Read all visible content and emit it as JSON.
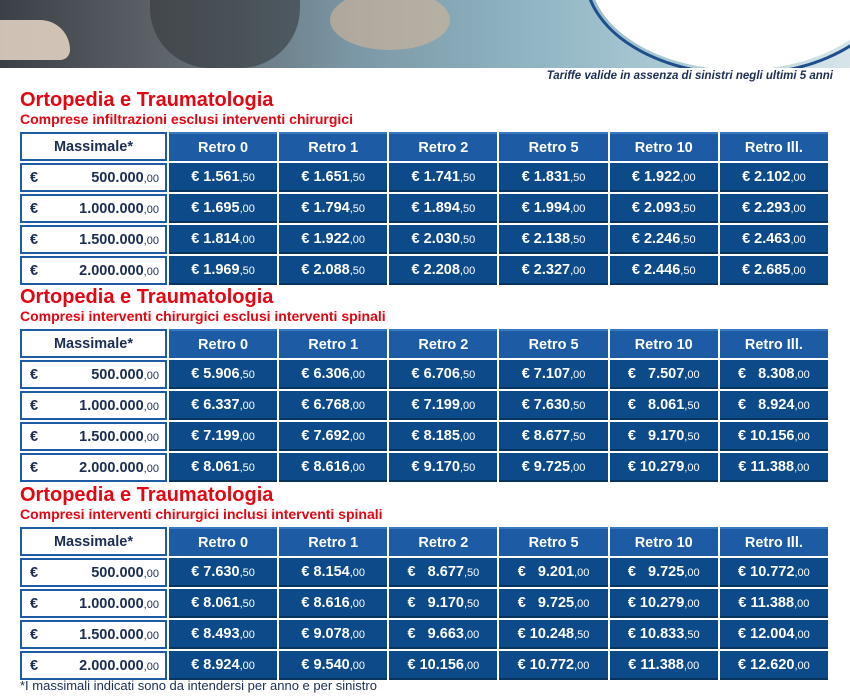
{
  "note": "Tariffe valide in assenza di sinistri negli ultimi 5 anni",
  "headers": {
    "massimale": "Massimale*",
    "columns": [
      "Retro 0",
      "Retro 1",
      "Retro 2",
      "Retro 5",
      "Retro 10",
      "Retro Ill."
    ]
  },
  "currency": "€",
  "sections": [
    {
      "title": "Ortopedia e Traumatologia",
      "subtitle": "Comprese infiltrazioni esclusi interventi chirurgici",
      "rows": [
        {
          "amount": "500.000",
          "amount_dec": ",00",
          "values": [
            [
              "€ 1.561",
              ",50"
            ],
            [
              "€ 1.651",
              ",50"
            ],
            [
              "€ 1.741",
              ",50"
            ],
            [
              "€ 1.831",
              ",50"
            ],
            [
              "€ 1.922",
              ",00"
            ],
            [
              "€ 2.102",
              ",00"
            ]
          ]
        },
        {
          "amount": "1.000.000",
          "amount_dec": ",00",
          "values": [
            [
              "€ 1.695",
              ",00"
            ],
            [
              "€ 1.794",
              ",50"
            ],
            [
              "€ 1.894",
              ",50"
            ],
            [
              "€ 1.994",
              ",00"
            ],
            [
              "€ 2.093",
              ",50"
            ],
            [
              "€ 2.293",
              ",00"
            ]
          ]
        },
        {
          "amount": "1.500.000",
          "amount_dec": ",00",
          "values": [
            [
              "€ 1.814",
              ",00"
            ],
            [
              "€ 1.922",
              ",00"
            ],
            [
              "€ 2.030",
              ",50"
            ],
            [
              "€ 2.138",
              ",50"
            ],
            [
              "€ 2.246",
              ",50"
            ],
            [
              "€ 2.463",
              ",00"
            ]
          ]
        },
        {
          "amount": "2.000.000",
          "amount_dec": ",00",
          "values": [
            [
              "€ 1.969",
              ",50"
            ],
            [
              "€ 2.088",
              ",50"
            ],
            [
              "€ 2.208",
              ",00"
            ],
            [
              "€ 2.327",
              ",00"
            ],
            [
              "€ 2.446",
              ",50"
            ],
            [
              "€ 2.685",
              ",00"
            ]
          ]
        }
      ]
    },
    {
      "title": "Ortopedia e Traumatologia",
      "subtitle": "Compresi interventi chirurgici esclusi interventi spinali",
      "rows": [
        {
          "amount": "500.000",
          "amount_dec": ",00",
          "values": [
            [
              "€ 5.906",
              ",50"
            ],
            [
              "€ 6.306",
              ",00"
            ],
            [
              "€ 6.706",
              ",50"
            ],
            [
              "€ 7.107",
              ",00"
            ],
            [
              "€   7.507",
              ",00"
            ],
            [
              "€   8.308",
              ",00"
            ]
          ]
        },
        {
          "amount": "1.000.000",
          "amount_dec": ",00",
          "values": [
            [
              "€ 6.337",
              ",00"
            ],
            [
              "€ 6.768",
              ",00"
            ],
            [
              "€ 7.199",
              ",00"
            ],
            [
              "€ 7.630",
              ",50"
            ],
            [
              "€   8.061",
              ",50"
            ],
            [
              "€   8.924",
              ",00"
            ]
          ]
        },
        {
          "amount": "1.500.000",
          "amount_dec": ",00",
          "values": [
            [
              "€ 7.199",
              ",00"
            ],
            [
              "€ 7.692",
              ",00"
            ],
            [
              "€ 8.185",
              ",00"
            ],
            [
              "€ 8.677",
              ",50"
            ],
            [
              "€   9.170",
              ",50"
            ],
            [
              "€ 10.156",
              ",00"
            ]
          ]
        },
        {
          "amount": "2.000.000",
          "amount_dec": ",00",
          "values": [
            [
              "€ 8.061",
              ",50"
            ],
            [
              "€ 8.616",
              ",00"
            ],
            [
              "€ 9.170",
              ",50"
            ],
            [
              "€ 9.725",
              ",00"
            ],
            [
              "€ 10.279",
              ",00"
            ],
            [
              "€ 11.388",
              ",00"
            ]
          ]
        }
      ]
    },
    {
      "title": "Ortopedia e Traumatologia",
      "subtitle": "Compresi interventi chirurgici inclusi interventi spinali",
      "rows": [
        {
          "amount": "500.000",
          "amount_dec": ",00",
          "values": [
            [
              "€ 7.630",
              ",50"
            ],
            [
              "€ 8.154",
              ",00"
            ],
            [
              "€   8.677",
              ",50"
            ],
            [
              "€   9.201",
              ",00"
            ],
            [
              "€   9.725",
              ",00"
            ],
            [
              "€ 10.772",
              ",00"
            ]
          ]
        },
        {
          "amount": "1.000.000",
          "amount_dec": ",00",
          "values": [
            [
              "€ 8.061",
              ",50"
            ],
            [
              "€ 8.616",
              ",00"
            ],
            [
              "€   9.170",
              ",50"
            ],
            [
              "€   9.725",
              ",00"
            ],
            [
              "€ 10.279",
              ",00"
            ],
            [
              "€ 11.388",
              ",00"
            ]
          ]
        },
        {
          "amount": "1.500.000",
          "amount_dec": ",00",
          "values": [
            [
              "€ 8.493",
              ",00"
            ],
            [
              "€ 9.078",
              ",00"
            ],
            [
              "€   9.663",
              ",00"
            ],
            [
              "€ 10.248",
              ",50"
            ],
            [
              "€ 10.833",
              ",50"
            ],
            [
              "€ 12.004",
              ",00"
            ]
          ]
        },
        {
          "amount": "2.000.000",
          "amount_dec": ",00",
          "values": [
            [
              "€ 8.924",
              ",00"
            ],
            [
              "€ 9.540",
              ",00"
            ],
            [
              "€ 10.156",
              ",00"
            ],
            [
              "€ 10.772",
              ",00"
            ],
            [
              "€ 11.388",
              ",00"
            ],
            [
              "€ 12.620",
              ",00"
            ]
          ]
        }
      ]
    }
  ],
  "footnote": "*I massimali indicati sono da intendersi per anno e per sinistro"
}
